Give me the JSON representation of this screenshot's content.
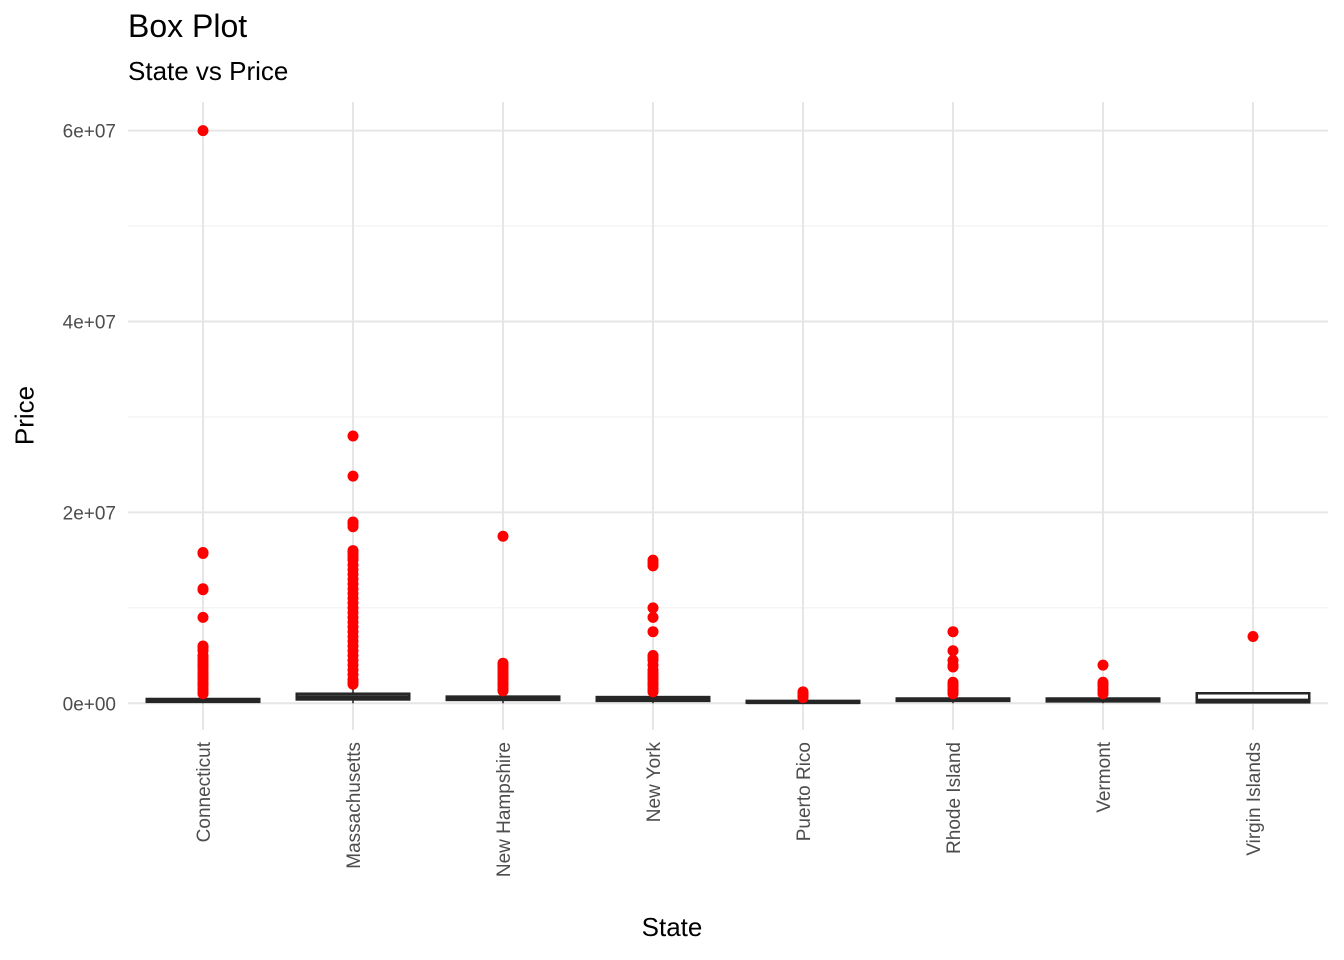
{
  "title": "Box Plot",
  "subtitle": "State vs Price",
  "chart_data": {
    "type": "box",
    "xlabel": "State",
    "ylabel": "Price",
    "ylim": [
      -2800000,
      63000000
    ],
    "y_ticks": [
      {
        "value": 0,
        "label": "0e+00"
      },
      {
        "value": 20000000,
        "label": "2e+07"
      },
      {
        "value": 40000000,
        "label": "4e+07"
      },
      {
        "value": 60000000,
        "label": "6e+07"
      }
    ],
    "y_minor_ticks": [
      10000000,
      30000000,
      50000000
    ],
    "grid": true,
    "legend": "none",
    "outlier_color": "#ff0000",
    "box_color": "#262626",
    "categories": [
      "Connecticut",
      "Massachusetts",
      "New Hampshire",
      "New York",
      "Puerto Rico",
      "Rhode Island",
      "Vermont",
      "Virgin Islands"
    ],
    "boxes": [
      {
        "q1": 150000,
        "median": 250000,
        "q3": 450000,
        "whisker_low": 0,
        "whisker_high": 950000,
        "outliers": [
          60000000,
          15800000,
          15700000,
          12000000,
          11900000,
          9000000,
          6000000,
          5800000,
          5500000,
          5000000,
          4800000,
          4500000,
          4200000,
          4000000,
          3800000,
          3500000,
          3200000,
          3000000,
          2800000,
          2500000,
          2200000,
          2000000,
          1800000,
          1500000,
          1200000,
          1000000
        ]
      },
      {
        "q1": 400000,
        "median": 650000,
        "q3": 1000000,
        "whisker_low": 0,
        "whisker_high": 1900000,
        "outliers": [
          28000000,
          23800000,
          19000000,
          18800000,
          18500000,
          16000000,
          15800000,
          15500000,
          15200000,
          15000000,
          14500000,
          14000000,
          13500000,
          13000000,
          12500000,
          12000000,
          11500000,
          11000000,
          10500000,
          10000000,
          9500000,
          9000000,
          8500000,
          8000000,
          7500000,
          7000000,
          6500000,
          6000000,
          5500000,
          5000000,
          4500000,
          4000000,
          3500000,
          3000000,
          2500000,
          2200000,
          2000000
        ]
      },
      {
        "q1": 350000,
        "median": 450000,
        "q3": 700000,
        "whisker_low": 0,
        "whisker_high": 1200000,
        "outliers": [
          17500000,
          4200000,
          4000000,
          3800000,
          3500000,
          3200000,
          3000000,
          2800000,
          2500000,
          2200000,
          2000000,
          1800000,
          1500000,
          1300000
        ]
      },
      {
        "q1": 250000,
        "median": 400000,
        "q3": 650000,
        "whisker_low": 0,
        "whisker_high": 1100000,
        "outliers": [
          15000000,
          14700000,
          14400000,
          10000000,
          9000000,
          7500000,
          5000000,
          4800000,
          4500000,
          4000000,
          3500000,
          3200000,
          3000000,
          2800000,
          2500000,
          2200000,
          2000000,
          1800000,
          1500000,
          1200000
        ]
      },
      {
        "q1": 50000,
        "median": 120000,
        "q3": 250000,
        "whisker_low": 0,
        "whisker_high": 500000,
        "outliers": [
          1200000,
          1000000,
          900000,
          800000,
          700000,
          600000
        ]
      },
      {
        "q1": 250000,
        "median": 350000,
        "q3": 500000,
        "whisker_low": 0,
        "whisker_high": 900000,
        "outliers": [
          7500000,
          5500000,
          4500000,
          4000000,
          3800000,
          2200000,
          2000000,
          1800000,
          1600000,
          1500000,
          1300000,
          1100000,
          1000000
        ]
      },
      {
        "q1": 200000,
        "median": 300000,
        "q3": 500000,
        "whisker_low": 0,
        "whisker_high": 900000,
        "outliers": [
          4000000,
          2200000,
          2000000,
          1800000,
          1500000,
          1200000,
          1000000
        ]
      },
      {
        "q1": 100000,
        "median": 280000,
        "q3": 1050000,
        "whisker_low": 0,
        "whisker_high": 1050000,
        "outliers": [
          7000000
        ]
      }
    ]
  }
}
